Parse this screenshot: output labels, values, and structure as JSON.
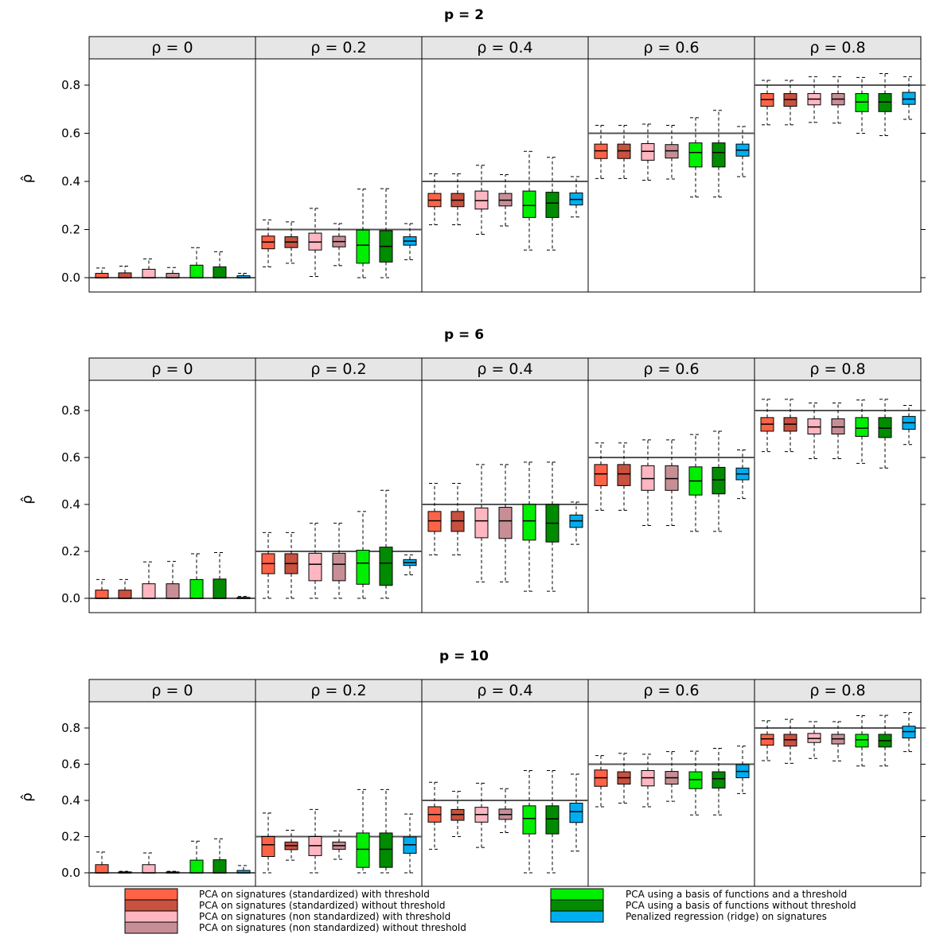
{
  "chart_data": {
    "type": "box",
    "facet_labels": [
      "ρ = 0",
      "ρ = 0.2",
      "ρ = 0.4",
      "ρ = 0.6",
      "ρ = 0.8"
    ],
    "true_values": [
      0,
      0.2,
      0.4,
      0.6,
      0.8
    ],
    "ylabel": "ρ̂",
    "ylim": [
      -0.08,
      0.93
    ],
    "yticks": [
      0.0,
      0.2,
      0.4,
      0.6,
      0.8
    ],
    "ytick_labels": [
      "0.0",
      "0.2",
      "0.4",
      "0.6",
      "0.8"
    ],
    "grid": false,
    "legend_position": "bottom",
    "methods": [
      {
        "name": "PCA on signatures (standardized) with threshold",
        "color": "#FF6347"
      },
      {
        "name": "PCA on signatures (standardized) without threshold",
        "color": "#C8513F"
      },
      {
        "name": "PCA on signatures (non standardized) with threshold",
        "color": "#FFB6C1"
      },
      {
        "name": "PCA on signatures (non standardized) without threshold",
        "color": "#C88E96"
      },
      {
        "name": "PCA using a basis of functions and a threshold",
        "color": "#00EE00"
      },
      {
        "name": "PCA using a basis of functions without threshold",
        "color": "#008B00"
      },
      {
        "name": "Penalized regression (ridge) on signatures",
        "color": "#00AEEF"
      }
    ],
    "stats_format": "[whisker_low, q1, median, q3, whisker_high]",
    "panels": [
      {
        "title": "p = 2",
        "facets": [
          [
            [
              0,
              0,
              0,
              0.018,
              0.04
            ],
            [
              0,
              0,
              0,
              0.02,
              0.048
            ],
            [
              0,
              0,
              0,
              0.035,
              0.078
            ],
            [
              0,
              0,
              0,
              0.018,
              0.042
            ],
            [
              0,
              0,
              0,
              0.052,
              0.125
            ],
            [
              0,
              0,
              0,
              0.045,
              0.108
            ],
            [
              0,
              0,
              0,
              0.008,
              0.018
            ]
          ],
          [
            [
              0.045,
              0.12,
              0.148,
              0.173,
              0.24
            ],
            [
              0.06,
              0.125,
              0.148,
              0.17,
              0.232
            ],
            [
              0.005,
              0.115,
              0.148,
              0.185,
              0.288
            ],
            [
              0.05,
              0.128,
              0.15,
              0.172,
              0.225
            ],
            [
              0,
              0.06,
              0.135,
              0.198,
              0.368
            ],
            [
              0,
              0.065,
              0.13,
              0.195,
              0.37
            ],
            [
              0.075,
              0.135,
              0.152,
              0.17,
              0.225
            ]
          ],
          [
            [
              0.22,
              0.295,
              0.322,
              0.35,
              0.432
            ],
            [
              0.22,
              0.295,
              0.322,
              0.35,
              0.432
            ],
            [
              0.18,
              0.285,
              0.32,
              0.36,
              0.467
            ],
            [
              0.215,
              0.298,
              0.322,
              0.35,
              0.428
            ],
            [
              0.115,
              0.25,
              0.3,
              0.36,
              0.525
            ],
            [
              0.115,
              0.25,
              0.31,
              0.355,
              0.5
            ],
            [
              0.252,
              0.302,
              0.325,
              0.352,
              0.42
            ]
          ],
          [
            [
              0.412,
              0.495,
              0.527,
              0.555,
              0.633
            ],
            [
              0.412,
              0.495,
              0.527,
              0.555,
              0.633
            ],
            [
              0.405,
              0.488,
              0.525,
              0.557,
              0.638
            ],
            [
              0.41,
              0.497,
              0.527,
              0.553,
              0.633
            ],
            [
              0.335,
              0.46,
              0.52,
              0.56,
              0.665
            ],
            [
              0.335,
              0.46,
              0.52,
              0.56,
              0.695
            ],
            [
              0.42,
              0.505,
              0.53,
              0.555,
              0.628
            ]
          ],
          [
            [
              0.635,
              0.712,
              0.74,
              0.765,
              0.82
            ],
            [
              0.635,
              0.712,
              0.74,
              0.765,
              0.82
            ],
            [
              0.645,
              0.718,
              0.742,
              0.765,
              0.835
            ],
            [
              0.642,
              0.718,
              0.742,
              0.765,
              0.835
            ],
            [
              0.6,
              0.69,
              0.73,
              0.765,
              0.832
            ],
            [
              0.59,
              0.69,
              0.73,
              0.765,
              0.848
            ],
            [
              0.658,
              0.72,
              0.742,
              0.77,
              0.835
            ]
          ]
        ]
      },
      {
        "title": "p = 6",
        "facets": [
          [
            [
              0,
              0,
              0,
              0.035,
              0.08
            ],
            [
              0,
              0,
              0,
              0.035,
              0.08
            ],
            [
              0,
              0,
              0,
              0.062,
              0.155
            ],
            [
              0,
              0,
              0,
              0.062,
              0.157
            ],
            [
              0,
              0,
              0,
              0.08,
              0.19
            ],
            [
              0,
              0,
              0,
              0.082,
              0.195
            ],
            [
              0,
              0,
              0,
              0.004,
              0.008
            ]
          ],
          [
            [
              0,
              0.105,
              0.148,
              0.19,
              0.28
            ],
            [
              0,
              0.105,
              0.148,
              0.19,
              0.28
            ],
            [
              0,
              0.075,
              0.145,
              0.192,
              0.32
            ],
            [
              0,
              0.075,
              0.145,
              0.192,
              0.32
            ],
            [
              0,
              0.06,
              0.15,
              0.205,
              0.37
            ],
            [
              0,
              0.055,
              0.15,
              0.218,
              0.46
            ],
            [
              0.1,
              0.14,
              0.152,
              0.165,
              0.185
            ]
          ],
          [
            [
              0.185,
              0.285,
              0.33,
              0.37,
              0.49
            ],
            [
              0.185,
              0.285,
              0.33,
              0.37,
              0.49
            ],
            [
              0.07,
              0.258,
              0.33,
              0.385,
              0.57
            ],
            [
              0.07,
              0.255,
              0.33,
              0.388,
              0.57
            ],
            [
              0.03,
              0.248,
              0.33,
              0.4,
              0.58
            ],
            [
              0.03,
              0.24,
              0.32,
              0.4,
              0.58
            ],
            [
              0.23,
              0.302,
              0.33,
              0.355,
              0.41
            ]
          ],
          [
            [
              0.375,
              0.48,
              0.53,
              0.57,
              0.662
            ],
            [
              0.375,
              0.48,
              0.53,
              0.57,
              0.662
            ],
            [
              0.31,
              0.46,
              0.51,
              0.565,
              0.675
            ],
            [
              0.31,
              0.46,
              0.51,
              0.565,
              0.675
            ],
            [
              0.285,
              0.44,
              0.5,
              0.56,
              0.698
            ],
            [
              0.285,
              0.445,
              0.505,
              0.558,
              0.712
            ],
            [
              0.425,
              0.505,
              0.53,
              0.555,
              0.632
            ]
          ],
          [
            [
              0.625,
              0.712,
              0.742,
              0.77,
              0.848
            ],
            [
              0.625,
              0.712,
              0.742,
              0.77,
              0.848
            ],
            [
              0.595,
              0.7,
              0.73,
              0.765,
              0.832
            ],
            [
              0.595,
              0.7,
              0.73,
              0.765,
              0.832
            ],
            [
              0.575,
              0.69,
              0.725,
              0.77,
              0.845
            ],
            [
              0.555,
              0.685,
              0.725,
              0.77,
              0.848
            ],
            [
              0.655,
              0.72,
              0.748,
              0.775,
              0.822
            ]
          ]
        ]
      },
      {
        "title": "p = 10",
        "facets": [
          [
            [
              0,
              0,
              0,
              0.045,
              0.115
            ],
            [
              0,
              0,
              0,
              0.005,
              0.008
            ],
            [
              0,
              0,
              0,
              0.045,
              0.11
            ],
            [
              0,
              0,
              0,
              0.005,
              0.008
            ],
            [
              0,
              0,
              0,
              0.07,
              0.175
            ],
            [
              0,
              0,
              0,
              0.072,
              0.188
            ],
            [
              0,
              0,
              0,
              0.013,
              0.04
            ]
          ],
          [
            [
              0,
              0.09,
              0.155,
              0.2,
              0.33
            ],
            [
              0.07,
              0.128,
              0.15,
              0.17,
              0.235
            ],
            [
              0,
              0.095,
              0.15,
              0.2,
              0.35
            ],
            [
              0.075,
              0.13,
              0.15,
              0.17,
              0.232
            ],
            [
              0,
              0.03,
              0.13,
              0.22,
              0.46
            ],
            [
              0,
              0.03,
              0.13,
              0.22,
              0.46
            ],
            [
              0,
              0.108,
              0.155,
              0.198,
              0.325
            ]
          ],
          [
            [
              0.13,
              0.28,
              0.322,
              0.365,
              0.5
            ],
            [
              0.2,
              0.29,
              0.322,
              0.35,
              0.45
            ],
            [
              0.14,
              0.28,
              0.322,
              0.362,
              0.495
            ],
            [
              0.222,
              0.295,
              0.322,
              0.352,
              0.465
            ],
            [
              0,
              0.215,
              0.3,
              0.37,
              0.565
            ],
            [
              0,
              0.215,
              0.298,
              0.37,
              0.565
            ],
            [
              0.12,
              0.278,
              0.338,
              0.385,
              0.545
            ]
          ],
          [
            [
              0.365,
              0.478,
              0.525,
              0.568,
              0.648
            ],
            [
              0.385,
              0.49,
              0.525,
              0.558,
              0.66
            ],
            [
              0.365,
              0.48,
              0.525,
              0.565,
              0.655
            ],
            [
              0.395,
              0.49,
              0.525,
              0.56,
              0.67
            ],
            [
              0.32,
              0.465,
              0.515,
              0.558,
              0.672
            ],
            [
              0.32,
              0.468,
              0.52,
              0.558,
              0.688
            ],
            [
              0.438,
              0.525,
              0.56,
              0.598,
              0.7
            ]
          ],
          [
            [
              0.62,
              0.705,
              0.74,
              0.765,
              0.84
            ],
            [
              0.605,
              0.7,
              0.735,
              0.765,
              0.848
            ],
            [
              0.632,
              0.72,
              0.742,
              0.77,
              0.835
            ],
            [
              0.618,
              0.712,
              0.74,
              0.765,
              0.835
            ],
            [
              0.59,
              0.695,
              0.735,
              0.765,
              0.868
            ],
            [
              0.59,
              0.695,
              0.73,
              0.765,
              0.87
            ],
            [
              0.67,
              0.745,
              0.78,
              0.81,
              0.885
            ]
          ]
        ]
      }
    ]
  }
}
